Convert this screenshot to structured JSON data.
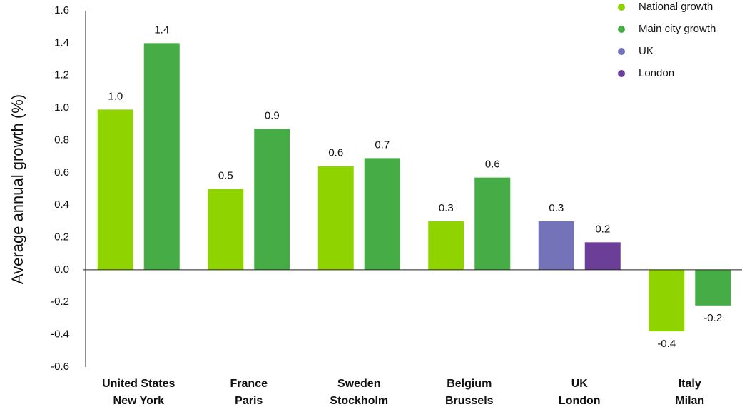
{
  "chart_data": {
    "type": "bar",
    "y_label": "Average annual growth (%)",
    "categories": [
      [
        "United States",
        "New York"
      ],
      [
        "France",
        "Paris"
      ],
      [
        "Sweden",
        "Stockholm"
      ],
      [
        "Belgium",
        "Brussels"
      ],
      [
        "UK",
        "London"
      ],
      [
        "Italy",
        "Milan"
      ]
    ],
    "series": [
      {
        "name": "National growth",
        "color": "#8fd400",
        "values": [
          0.99,
          0.5,
          0.64,
          0.3,
          null,
          -0.38
        ],
        "value_labels": [
          "1.0",
          "0.5",
          "0.6",
          "0.3",
          null,
          "-0.4"
        ]
      },
      {
        "name": "Main city growth",
        "color": "#46ad46",
        "values": [
          1.4,
          0.87,
          0.69,
          0.57,
          null,
          -0.22
        ],
        "value_labels": [
          "1.4",
          "0.9",
          "0.7",
          "0.6",
          null,
          "-0.2"
        ]
      },
      {
        "name": "UK",
        "color": "#7472b8",
        "values": [
          null,
          null,
          null,
          null,
          0.3,
          null
        ],
        "value_labels": [
          null,
          null,
          null,
          null,
          "0.3",
          null
        ]
      },
      {
        "name": "London",
        "color": "#6b3f98",
        "values": [
          null,
          null,
          null,
          null,
          0.17,
          null
        ],
        "value_labels": [
          null,
          null,
          null,
          null,
          "0.2",
          null
        ]
      }
    ],
    "ylim": [
      -0.6,
      1.6
    ],
    "yticks": [
      -0.6,
      -0.4,
      -0.2,
      {
        "value": 0,
        "label": "0.0"
      },
      0.2,
      0.4,
      0.6,
      0.8,
      {
        "value": 1,
        "label": "1.0"
      },
      1.2,
      1.4,
      1.6
    ],
    "grid": false,
    "legend": "top-right"
  }
}
